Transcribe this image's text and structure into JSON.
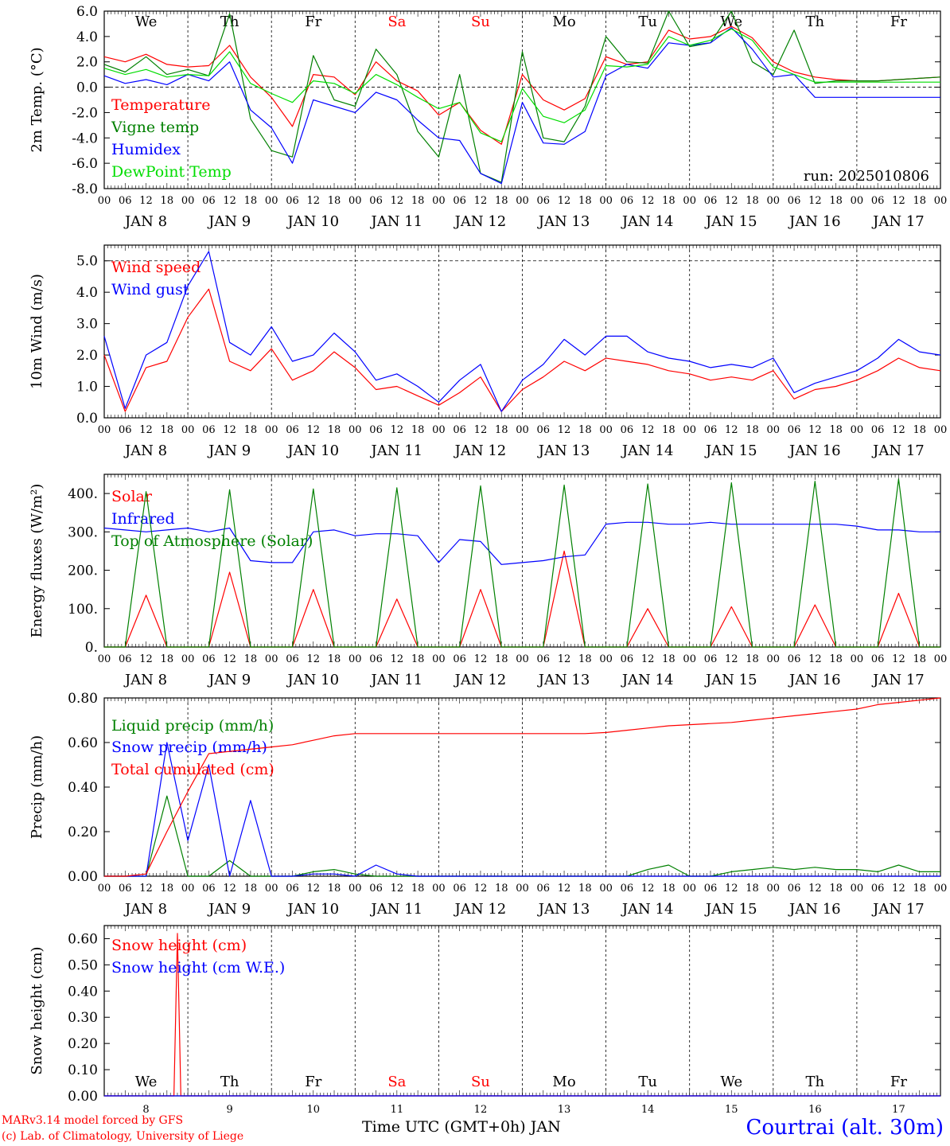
{
  "colors": {
    "red": "#ff0000",
    "green": "#008000",
    "blue": "#0000ff",
    "lightgreen": "#00dd00",
    "black": "#000000"
  },
  "days": {
    "names": [
      "We",
      "Th",
      "Fr",
      "Sa",
      "Su",
      "Mo",
      "Tu",
      "We",
      "Th",
      "Fr"
    ],
    "weekend": [
      false,
      false,
      false,
      true,
      true,
      false,
      false,
      false,
      false,
      false
    ],
    "month_labels": [
      "JAN  8",
      "JAN  9",
      "JAN 10",
      "JAN 11",
      "JAN 12",
      "JAN 13",
      "JAN 14",
      "JAN 15",
      "JAN 16",
      "JAN 17"
    ],
    "hour_ticks": [
      "00",
      "06",
      "12",
      "18"
    ],
    "end_tick": "00",
    "numbers": [
      "8",
      "9",
      "10",
      "11",
      "12",
      "13",
      "14",
      "15",
      "16",
      "17"
    ]
  },
  "footer": {
    "credit_line1": "MARv3.14 model forced by GFS",
    "credit_line2": "(c) Lab. of Climatology, University of Liege",
    "xlabel": "Time UTC (GMT+0h) JAN",
    "station": "Courtrai (alt. 30m)"
  },
  "chart_data": [
    {
      "id": "temp",
      "type": "line",
      "ylabel": "2m Temp. (°C)",
      "ylim": [
        -8,
        6
      ],
      "yticks": [
        "-8.0",
        "-6.0",
        "-4.0",
        "-2.0",
        "0.0",
        "2.0",
        "4.0",
        "6.0"
      ],
      "ref_line": 0,
      "annotation": "run: 2025010806",
      "x_hours": [
        0,
        6,
        12,
        18,
        24,
        30,
        36,
        42,
        48,
        54,
        60,
        66,
        72,
        78,
        84,
        90,
        96,
        102,
        108,
        114,
        120,
        126,
        132,
        138,
        144,
        150,
        156,
        162,
        168,
        174,
        180,
        186,
        192,
        198,
        204,
        210,
        216,
        222,
        228,
        234,
        240
      ],
      "series": [
        {
          "name": "Temperature",
          "color": "#ff0000",
          "values": [
            2.4,
            2.0,
            2.6,
            1.8,
            1.6,
            1.7,
            3.3,
            0.8,
            -0.8,
            -3.1,
            1.0,
            0.8,
            -0.6,
            2.0,
            0.5,
            -0.3,
            -2.2,
            -1.2,
            -3.4,
            -4.5,
            1.0,
            -1.0,
            -1.8,
            -0.9,
            2.4,
            1.8,
            2.0,
            4.5,
            3.8,
            4.0,
            4.8,
            3.9,
            2.0,
            1.2,
            0.8,
            0.6,
            0.5,
            0.5,
            0.6,
            0.7,
            0.8
          ]
        },
        {
          "name": "Vigne temp",
          "color": "#008000",
          "values": [
            1.8,
            1.2,
            2.4,
            1.0,
            1.4,
            0.9,
            5.8,
            -2.5,
            -5.0,
            -5.5,
            2.5,
            -1.0,
            -1.5,
            3.0,
            1.0,
            -3.5,
            -5.5,
            1.0,
            -6.8,
            -7.5,
            2.8,
            -4.0,
            -4.3,
            -1.5,
            4.0,
            2.0,
            1.9,
            6.0,
            3.2,
            3.5,
            6.0,
            2.0,
            1.0,
            4.5,
            0.3,
            0.5,
            0.5,
            0.5,
            0.6,
            0.7,
            0.8
          ]
        },
        {
          "name": "Humidex",
          "color": "#0000ff",
          "values": [
            0.9,
            0.3,
            0.6,
            0.2,
            1.0,
            0.5,
            2.0,
            -1.8,
            -3.2,
            -6.0,
            -1.0,
            -1.5,
            -2.0,
            -0.4,
            -1.0,
            -2.6,
            -4.0,
            -4.2,
            -6.8,
            -7.6,
            -1.2,
            -4.4,
            -4.5,
            -3.5,
            0.9,
            1.8,
            1.5,
            3.5,
            3.3,
            3.5,
            4.7,
            3.0,
            0.8,
            1.0,
            -0.8,
            -0.8,
            -0.8,
            -0.8,
            -0.8,
            -0.8,
            -0.8
          ]
        },
        {
          "name": "DewPoint Temp",
          "color": "#00dd00",
          "values": [
            1.5,
            1.0,
            1.4,
            0.8,
            1.0,
            0.9,
            2.8,
            0.3,
            -0.5,
            -1.2,
            0.5,
            0.3,
            -0.5,
            1.0,
            0.2,
            -0.8,
            -1.7,
            -1.2,
            -3.6,
            -4.3,
            -0.1,
            -2.3,
            -2.8,
            -1.8,
            1.7,
            1.6,
            1.8,
            4.0,
            3.3,
            3.7,
            4.6,
            3.7,
            1.6,
            1.0,
            0.4,
            0.4,
            0.4,
            0.4,
            0.4,
            0.4,
            0.4
          ]
        }
      ]
    },
    {
      "id": "wind",
      "type": "line",
      "ylabel": "10m Wind (m/s)",
      "ylim": [
        0,
        5.5
      ],
      "yticks": [
        "0.0",
        "1.0",
        "2.0",
        "3.0",
        "4.0",
        "5.0"
      ],
      "ref_line": 5,
      "x_hours": [
        0,
        6,
        12,
        18,
        24,
        30,
        36,
        42,
        48,
        54,
        60,
        66,
        72,
        78,
        84,
        90,
        96,
        102,
        108,
        114,
        120,
        126,
        132,
        138,
        144,
        150,
        156,
        162,
        168,
        174,
        180,
        186,
        192,
        198,
        204,
        210,
        216,
        222,
        228,
        234,
        240
      ],
      "series": [
        {
          "name": "Wind speed",
          "color": "#ff0000",
          "values": [
            2.0,
            0.2,
            1.6,
            1.8,
            3.2,
            4.1,
            1.8,
            1.5,
            2.2,
            1.2,
            1.5,
            2.1,
            1.6,
            0.9,
            1.0,
            0.7,
            0.4,
            0.8,
            1.3,
            0.2,
            0.9,
            1.3,
            1.8,
            1.5,
            1.9,
            1.8,
            1.7,
            1.5,
            1.4,
            1.2,
            1.3,
            1.2,
            1.5,
            0.6,
            0.9,
            1.0,
            1.2,
            1.5,
            1.9,
            1.6,
            1.5
          ]
        },
        {
          "name": "Wind gust",
          "color": "#0000ff",
          "values": [
            2.6,
            0.3,
            2.0,
            2.4,
            4.2,
            5.3,
            2.4,
            2.0,
            2.9,
            1.8,
            2.0,
            2.7,
            2.1,
            1.2,
            1.4,
            1.0,
            0.5,
            1.2,
            1.7,
            0.2,
            1.2,
            1.7,
            2.5,
            2.0,
            2.6,
            2.6,
            2.1,
            1.9,
            1.8,
            1.6,
            1.7,
            1.6,
            1.9,
            0.8,
            1.1,
            1.3,
            1.5,
            1.9,
            2.5,
            2.1,
            2.0
          ]
        }
      ]
    },
    {
      "id": "flux",
      "type": "line",
      "ylabel": "Energy fluxes (W/m²)",
      "ylim": [
        0,
        450
      ],
      "yticks": [
        "0.",
        "100.",
        "200.",
        "300.",
        "400."
      ],
      "x_hours": [
        0,
        6,
        12,
        18,
        24,
        30,
        36,
        42,
        48,
        54,
        60,
        66,
        72,
        78,
        84,
        90,
        96,
        102,
        108,
        114,
        120,
        126,
        132,
        138,
        144,
        150,
        156,
        162,
        168,
        174,
        180,
        186,
        192,
        198,
        204,
        210,
        216,
        222,
        228,
        234,
        240
      ],
      "series": [
        {
          "name": "Solar",
          "color": "#ff0000",
          "values": [
            0,
            0,
            135,
            0,
            0,
            0,
            195,
            0,
            0,
            0,
            150,
            0,
            0,
            0,
            125,
            0,
            0,
            0,
            150,
            0,
            0,
            0,
            250,
            0,
            0,
            0,
            100,
            0,
            0,
            0,
            105,
            0,
            0,
            0,
            110,
            0,
            0,
            0,
            140,
            0,
            0
          ]
        },
        {
          "name": "Infrared",
          "color": "#0000ff",
          "values": [
            310,
            305,
            300,
            305,
            310,
            300,
            310,
            225,
            220,
            220,
            300,
            305,
            290,
            295,
            295,
            290,
            220,
            280,
            275,
            215,
            220,
            225,
            235,
            240,
            320,
            325,
            325,
            320,
            320,
            325,
            320,
            320,
            320,
            320,
            320,
            320,
            315,
            305,
            305,
            300,
            300
          ]
        },
        {
          "name": "Top of Atmosphere (Solar)",
          "color": "#008000",
          "values": [
            0,
            0,
            405,
            0,
            0,
            0,
            410,
            0,
            0,
            0,
            412,
            0,
            0,
            0,
            415,
            0,
            0,
            0,
            420,
            0,
            0,
            0,
            422,
            0,
            0,
            0,
            425,
            0,
            0,
            0,
            428,
            0,
            0,
            0,
            432,
            0,
            0,
            0,
            438,
            0,
            0
          ]
        }
      ]
    },
    {
      "id": "precip",
      "type": "line",
      "ylabel": "Precip (mm/h)",
      "ylim": [
        0,
        0.8
      ],
      "yticks": [
        "0.00",
        "0.20",
        "0.40",
        "0.60",
        "0.80"
      ],
      "x_hours": [
        0,
        6,
        12,
        18,
        24,
        30,
        36,
        42,
        48,
        54,
        60,
        66,
        72,
        78,
        84,
        90,
        96,
        102,
        108,
        114,
        120,
        126,
        132,
        138,
        144,
        150,
        156,
        162,
        168,
        174,
        180,
        186,
        192,
        198,
        204,
        210,
        216,
        222,
        228,
        234,
        240
      ],
      "series": [
        {
          "name": "Liquid precip (mm/h)",
          "color": "#008000",
          "values": [
            0,
            0,
            0,
            0.36,
            0,
            0,
            0.07,
            0,
            0,
            0,
            0.02,
            0.03,
            0.01,
            0,
            0,
            0,
            0,
            0,
            0,
            0,
            0,
            0,
            0,
            0,
            0,
            0,
            0.03,
            0.05,
            0,
            0,
            0.02,
            0.03,
            0.04,
            0.03,
            0.04,
            0.03,
            0.03,
            0.02,
            0.05,
            0.02,
            0.02
          ]
        },
        {
          "name": "Snow precip (mm/h)",
          "color": "#0000ff",
          "values": [
            0,
            0,
            0,
            0.6,
            0.16,
            0.5,
            0,
            0.34,
            0,
            0,
            0.01,
            0.01,
            0,
            0.05,
            0.01,
            0,
            0,
            0,
            0,
            0,
            0,
            0,
            0,
            0,
            0,
            0,
            0,
            0,
            0,
            0,
            0,
            0,
            0,
            0,
            0,
            0,
            0,
            0,
            0,
            0,
            0
          ]
        },
        {
          "name": "Total cumulated (cm)",
          "color": "#ff0000",
          "values": [
            0,
            0,
            0.01,
            0.2,
            0.38,
            0.55,
            0.56,
            0.57,
            0.58,
            0.59,
            0.61,
            0.63,
            0.64,
            0.64,
            0.64,
            0.64,
            0.64,
            0.64,
            0.64,
            0.64,
            0.64,
            0.64,
            0.64,
            0.64,
            0.645,
            0.655,
            0.665,
            0.675,
            0.68,
            0.685,
            0.69,
            0.7,
            0.71,
            0.72,
            0.73,
            0.74,
            0.75,
            0.77,
            0.78,
            0.79,
            0.8
          ]
        }
      ]
    },
    {
      "id": "snow",
      "type": "line",
      "ylabel": "Snow height (cm)",
      "ylim": [
        0,
        0.65
      ],
      "yticks": [
        "0.00",
        "0.10",
        "0.20",
        "0.30",
        "0.40",
        "0.50",
        "0.60"
      ],
      "x_hours": [
        0,
        6,
        12,
        18,
        20,
        21,
        22,
        24,
        30,
        36,
        42,
        48,
        54,
        60,
        66,
        72,
        78,
        84,
        90,
        96,
        102,
        108,
        114,
        120,
        126,
        132,
        138,
        144,
        150,
        156,
        162,
        168,
        174,
        180,
        186,
        192,
        198,
        204,
        210,
        216,
        222,
        228,
        234,
        240
      ],
      "series": [
        {
          "name": "Snow height (cm)",
          "color": "#ff0000",
          "values": [
            0,
            0,
            0,
            0,
            0,
            0.62,
            0,
            0,
            0,
            0,
            0,
            0,
            0,
            0,
            0,
            0,
            0,
            0,
            0,
            0,
            0,
            0,
            0,
            0,
            0,
            0,
            0,
            0,
            0,
            0,
            0,
            0,
            0,
            0,
            0,
            0,
            0,
            0,
            0,
            0,
            0,
            0,
            0,
            0
          ]
        },
        {
          "name": "Snow height (cm W.E.)",
          "color": "#0000ff",
          "values": [
            0,
            0,
            0,
            0,
            0,
            0,
            0,
            0,
            0,
            0,
            0,
            0,
            0,
            0,
            0,
            0,
            0,
            0,
            0,
            0,
            0,
            0,
            0,
            0,
            0,
            0,
            0,
            0,
            0,
            0,
            0,
            0,
            0,
            0,
            0,
            0,
            0,
            0,
            0,
            0,
            0,
            0,
            0,
            0
          ]
        }
      ]
    }
  ]
}
